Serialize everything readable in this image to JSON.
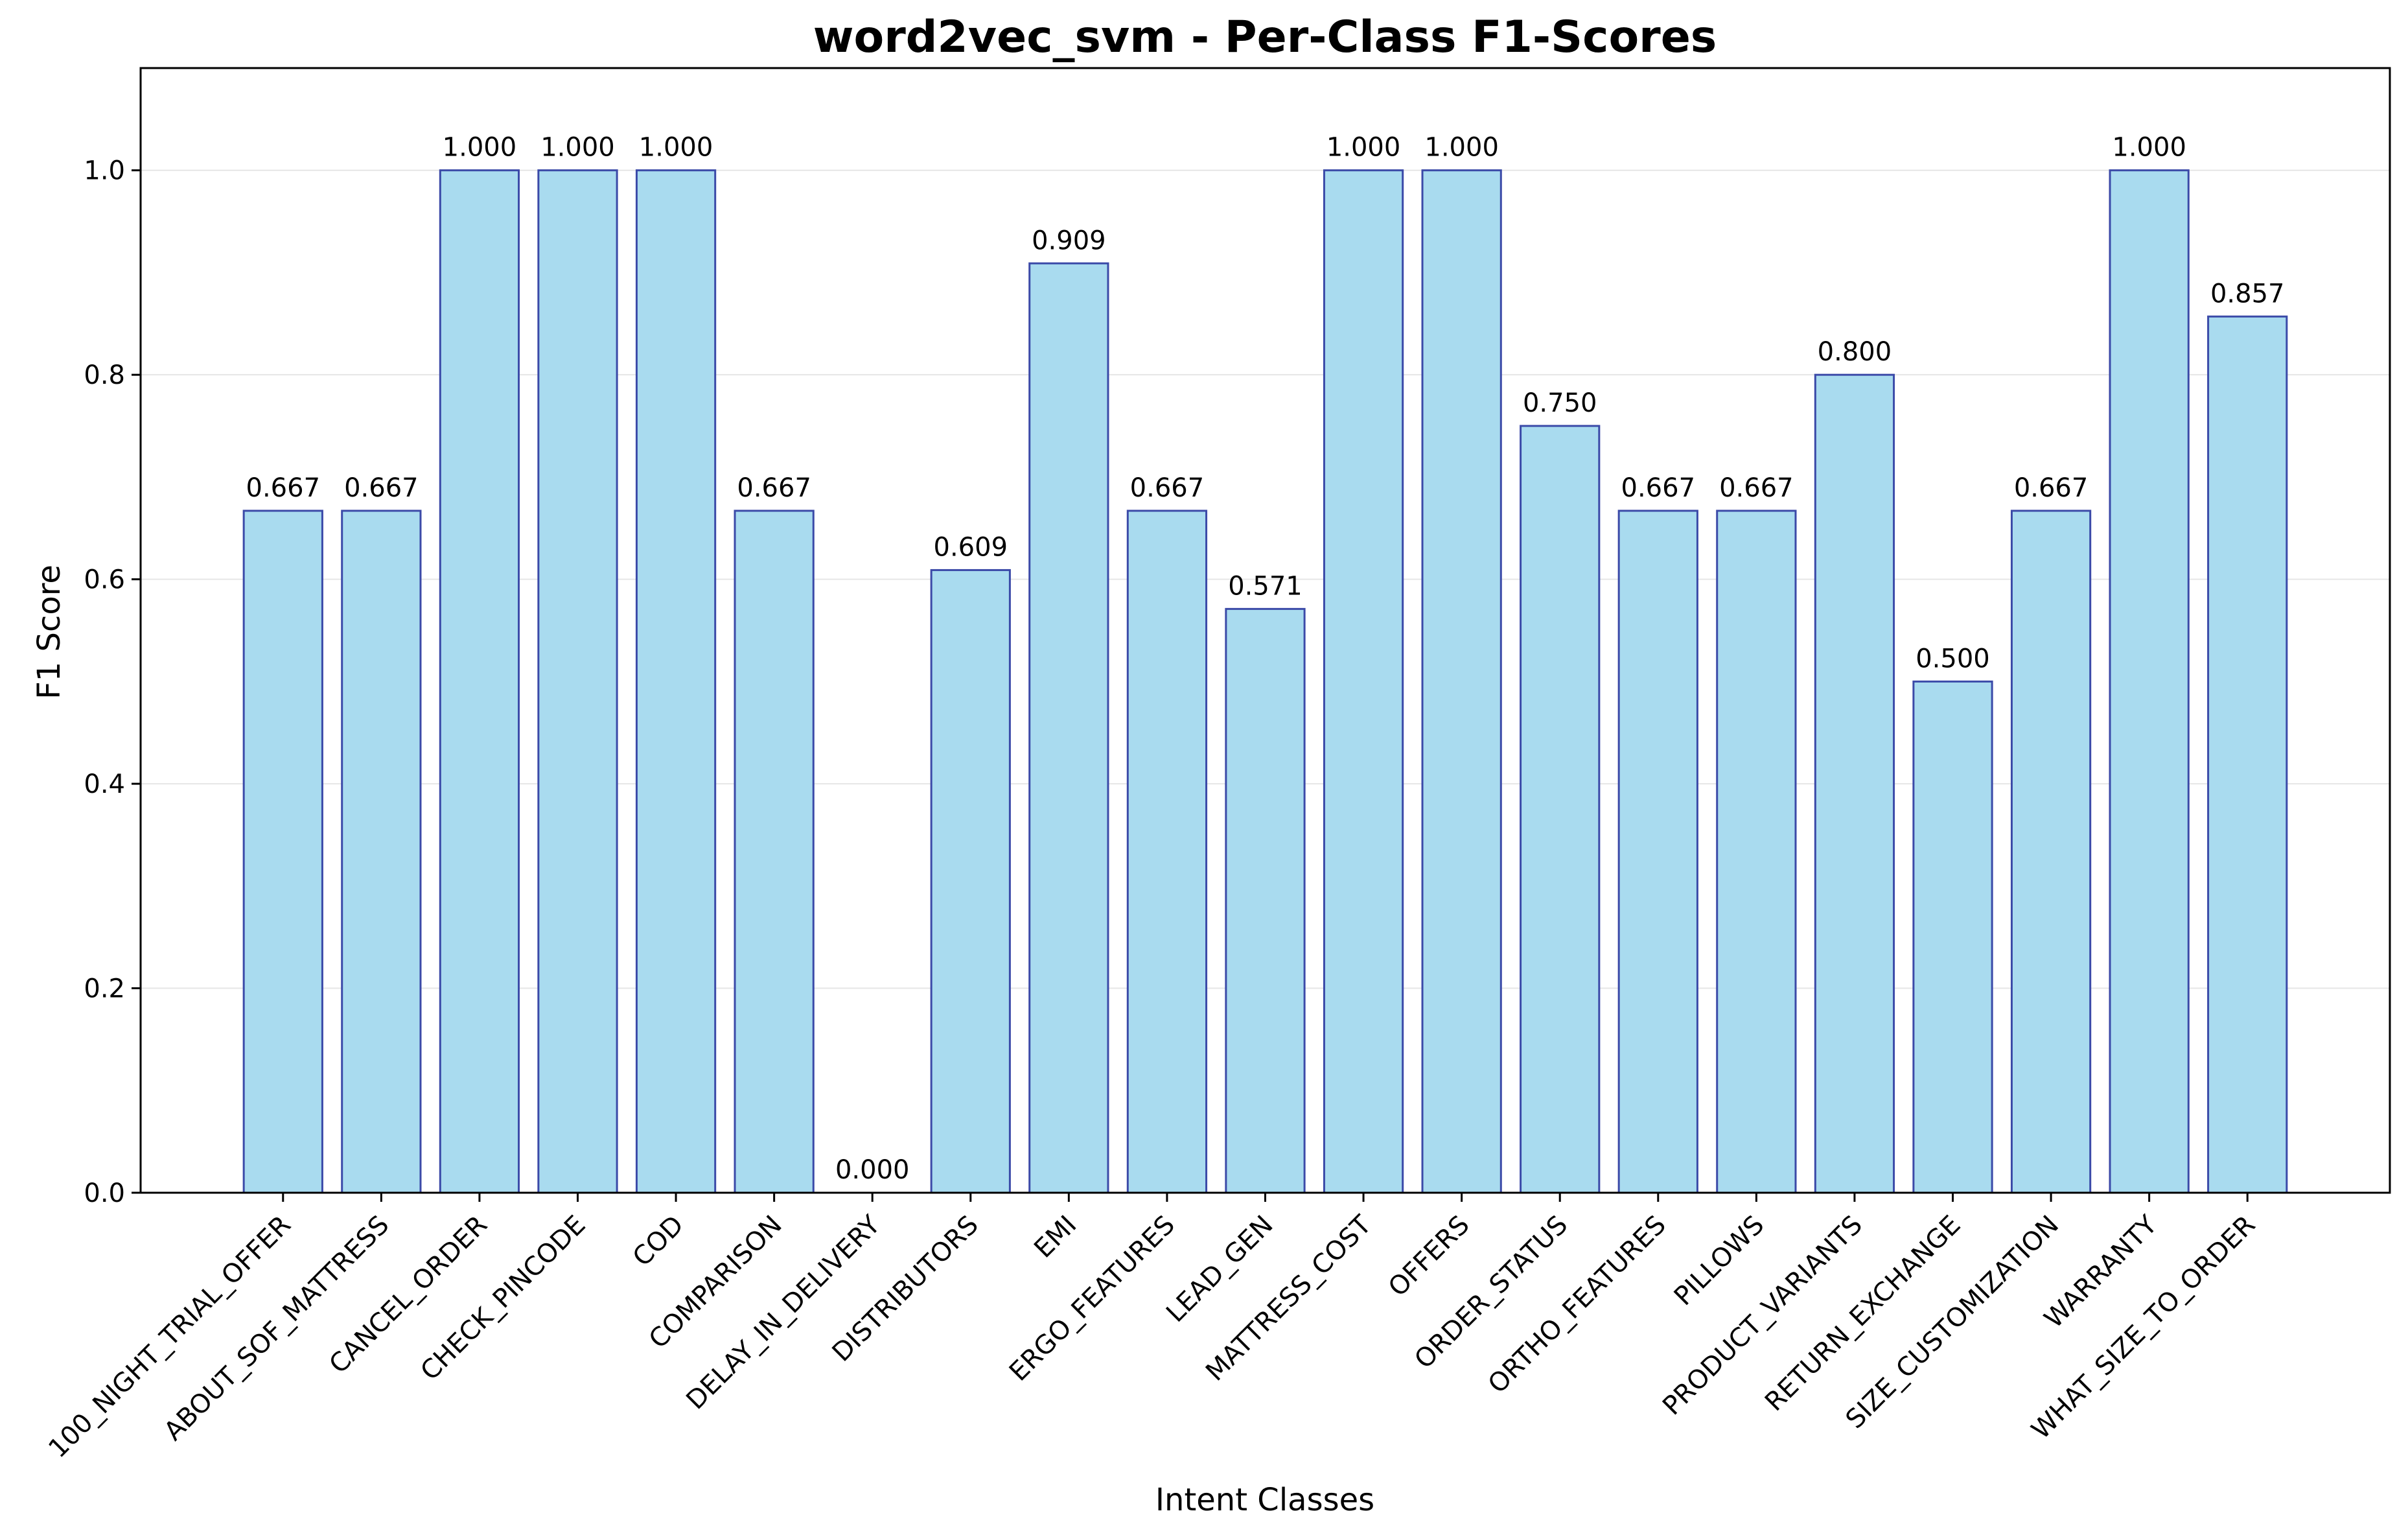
{
  "chart_data": {
    "type": "bar",
    "title": "word2vec_svm - Per-Class F1-Scores",
    "xlabel": "Intent Classes",
    "ylabel": "F1 Score",
    "ylim": [
      0,
      1.1
    ],
    "yticks": [
      "0.0",
      "0.2",
      "0.4",
      "0.6",
      "0.8",
      "1.0"
    ],
    "grid": "horizontal",
    "categories": [
      "100_NIGHT_TRIAL_OFFER",
      "ABOUT_SOF_MATTRESS",
      "CANCEL_ORDER",
      "CHECK_PINCODE",
      "COD",
      "COMPARISON",
      "DELAY_IN_DELIVERY",
      "DISTRIBUTORS",
      "EMI",
      "ERGO_FEATURES",
      "LEAD_GEN",
      "MATTRESS_COST",
      "OFFERS",
      "ORDER_STATUS",
      "ORTHO_FEATURES",
      "PILLOWS",
      "PRODUCT_VARIANTS",
      "RETURN_EXCHANGE",
      "SIZE_CUSTOMIZATION",
      "WARRANTY",
      "WHAT_SIZE_TO_ORDER"
    ],
    "values": [
      0.667,
      0.667,
      1.0,
      1.0,
      1.0,
      0.667,
      0.0,
      0.609,
      0.909,
      0.667,
      0.571,
      1.0,
      1.0,
      0.75,
      0.667,
      0.667,
      0.8,
      0.5,
      0.667,
      1.0,
      0.857
    ],
    "value_labels": [
      "0.667",
      "0.667",
      "1.000",
      "1.000",
      "1.000",
      "0.667",
      "0.000",
      "0.609",
      "0.909",
      "0.667",
      "0.571",
      "1.000",
      "1.000",
      "0.750",
      "0.667",
      "0.667",
      "0.800",
      "0.500",
      "0.667",
      "1.000",
      "0.857"
    ],
    "colors": {
      "bar_fill": "#a9dbef",
      "bar_edge": "#3b4aa8",
      "grid": "#e6e6e6",
      "axis": "#000000"
    }
  }
}
